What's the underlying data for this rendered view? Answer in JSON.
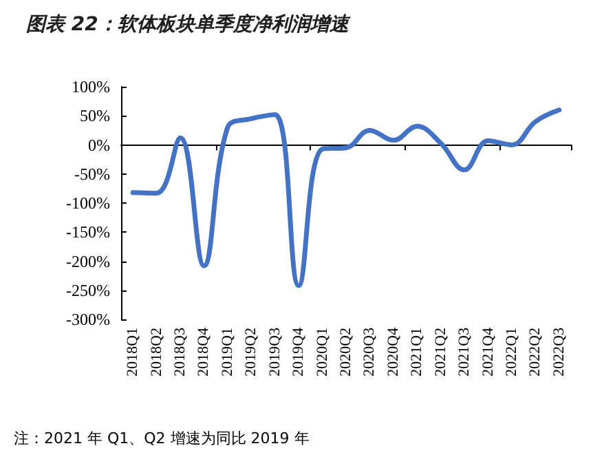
{
  "chart_data": {
    "type": "line",
    "title": "图表 22：软体板块单季度净利润增速",
    "categories": [
      "2018Q1",
      "2018Q2",
      "2018Q3",
      "2018Q4",
      "2019Q1",
      "2019Q2",
      "2019Q3",
      "2019Q4",
      "2020Q1",
      "2020Q2",
      "2020Q3",
      "2020Q4",
      "2021Q1",
      "2021Q2",
      "2021Q3",
      "2021Q4",
      "2022Q1",
      "2022Q2",
      "2022Q3"
    ],
    "series": [
      {
        "color": "#4472c4",
        "values": [
          -82,
          -83,
          12,
          -208,
          30,
          45,
          52,
          -242,
          -7,
          -5,
          25,
          8,
          32,
          3,
          -43,
          7,
          0,
          40,
          60
        ]
      }
    ],
    "ylim": [
      -300,
      100
    ],
    "yticks": [
      {
        "value": -300,
        "label": "-300%"
      },
      {
        "value": -250,
        "label": "-250%"
      },
      {
        "value": -200,
        "label": "-200%"
      },
      {
        "value": -150,
        "label": "-150%"
      },
      {
        "value": -100,
        "label": "-100%"
      },
      {
        "value": -50,
        "label": "-50%"
      },
      {
        "value": 0,
        "label": "0%"
      },
      {
        "value": 50,
        "label": "50%"
      },
      {
        "value": 100,
        "label": "100%"
      }
    ],
    "annotations": [
      "注：2021 年 Q1、Q2 增速为同比 2019 年"
    ],
    "marker": "none",
    "line_style": "solid"
  }
}
